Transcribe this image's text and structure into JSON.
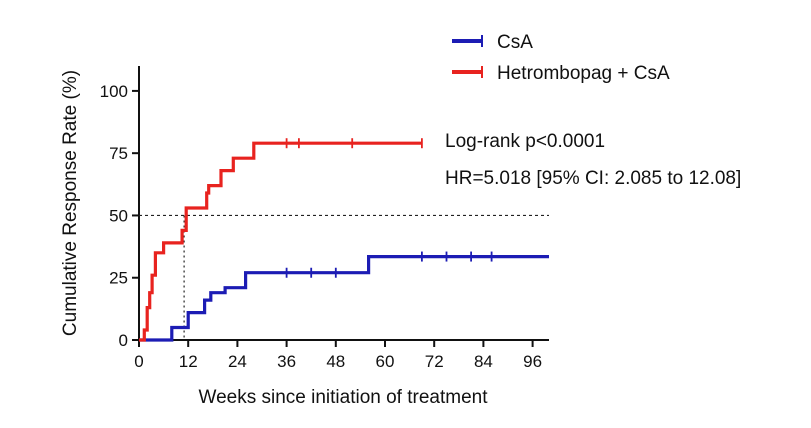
{
  "chart_data": {
    "type": "line",
    "step": true,
    "title": "",
    "xlabel": "Weeks since  initiation of treatment",
    "ylabel": "Cumulative Response Rate (%)",
    "xlim": [
      0,
      100
    ],
    "ylim": [
      0,
      110
    ],
    "xticks": [
      0,
      12,
      24,
      36,
      48,
      60,
      72,
      84,
      96
    ],
    "yticks": [
      0,
      25,
      50,
      75,
      100
    ],
    "grid": false,
    "legend_position": "top-right",
    "reference_line": {
      "y": 50,
      "style": "dashed"
    },
    "median_marker": {
      "x": 11,
      "y": 50,
      "style": "dotted"
    },
    "series": [
      {
        "name": "CsA",
        "color": "#1c1cb4",
        "x": [
          0,
          8,
          8,
          12,
          12,
          16,
          16,
          17.5,
          17.5,
          21,
          21,
          26,
          26,
          56,
          56,
          100
        ],
        "y": [
          0,
          0,
          5,
          5,
          11,
          11,
          16,
          16,
          19,
          19,
          21,
          21,
          27,
          27,
          33.5,
          33.5
        ],
        "censored_x": [
          36,
          42,
          48,
          69,
          75,
          81,
          86
        ],
        "censored_y": [
          27,
          27,
          27,
          33.5,
          33.5,
          33.5,
          33.5
        ]
      },
      {
        "name": "Hetrombopag + CsA",
        "color": "#e8231f",
        "x": [
          0,
          1.3,
          1.3,
          2,
          2,
          2.6,
          2.6,
          3.2,
          3.2,
          4,
          4,
          6,
          6,
          10.5,
          10.5,
          11.5,
          11.5,
          16.5,
          16.5,
          17,
          17,
          20,
          20,
          23,
          23,
          28,
          28,
          69
        ],
        "y": [
          0,
          0,
          4,
          4,
          13,
          13,
          19,
          19,
          26,
          26,
          35,
          35,
          39,
          39,
          44,
          44,
          53,
          53,
          59,
          59,
          62,
          62,
          68,
          68,
          73,
          73,
          79,
          79
        ],
        "censored_x": [
          36,
          39,
          52,
          69
        ],
        "censored_y": [
          79,
          79,
          79,
          79
        ]
      }
    ],
    "annotations": [
      "Log-rank p<0.0001",
      "HR=5.018 [95% CI: 2.085 to 12.08]"
    ]
  }
}
